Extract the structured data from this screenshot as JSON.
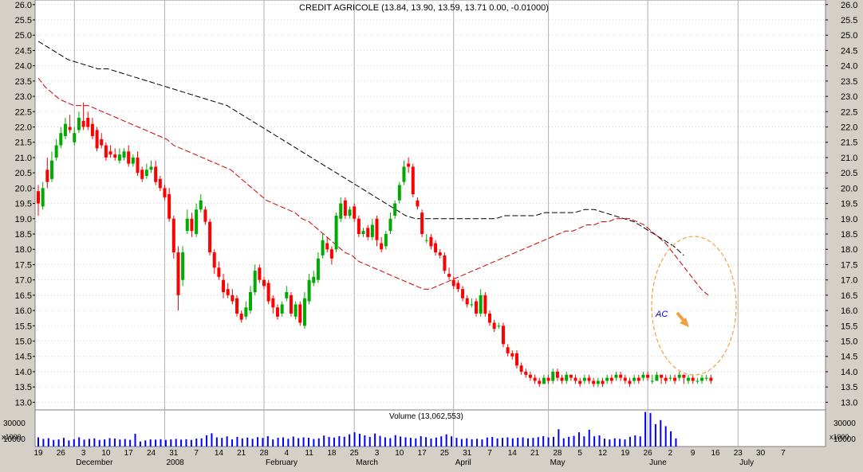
{
  "header": {
    "title_overlap": "CREDIT AGRICOLE",
    "title_text": "CREDIT AGRICOLE (13.84, 13.90, 13.59, 13.71 0.00, -0.01000)"
  },
  "volume_panel": {
    "label": "Volume (13,062,553)",
    "multiplier_label_left": "x1000",
    "multiplier_label_right": "x1000",
    "tick_label_left": "30000",
    "tick_label_right": "30000",
    "tick_label_left_low": "10000",
    "tick_label_right_low": "10000"
  },
  "annotation": {
    "label": "AC",
    "arrow_color": "#f0a040",
    "ellipse_color": "#f0a040"
  },
  "colors": {
    "up_candle": "#00aa00",
    "down_candle": "#ff0000",
    "ma_short": "#cc0000",
    "ma_long": "#000000",
    "volume_bar": "#0000ff",
    "panel_bg": "#ffffff",
    "frame_bg": "#d4d0c8",
    "grid": "#d0d0d0"
  },
  "chart_data": {
    "type": "candlestick",
    "title": "CREDIT AGRICOLE",
    "y_range": [
      12.75,
      26.15
    ],
    "y_ticks": [
      13.0,
      13.5,
      14.0,
      14.5,
      15.0,
      15.5,
      16.0,
      16.5,
      17.0,
      17.5,
      18.0,
      18.5,
      19.0,
      19.5,
      20.0,
      20.5,
      21.0,
      21.5,
      22.0,
      22.5,
      23.0,
      23.5,
      24.0,
      24.5,
      25.0,
      25.5,
      26.0
    ],
    "y_tick_labels": [
      "13.0",
      "13.5",
      "14.0",
      "14.5",
      "15.0",
      "15.5",
      "16.0",
      "16.5",
      "17.0",
      "17.5",
      "18.0",
      "18.5",
      "19.0",
      "19.5",
      "20.0",
      "20.5",
      "21.0",
      "21.5",
      "22.0",
      "22.5",
      "23.0",
      "23.5",
      "24.0",
      "24.5",
      "25.0",
      "25.5",
      "26.0"
    ],
    "x_day_labels": [
      {
        "day": 0,
        "label": "19"
      },
      {
        "day": 5,
        "label": "26"
      },
      {
        "day": 10,
        "label": "3"
      },
      {
        "day": 15,
        "label": "10"
      },
      {
        "day": 20,
        "label": "17"
      },
      {
        "day": 25,
        "label": "24"
      },
      {
        "day": 30,
        "label": "31"
      },
      {
        "day": 35,
        "label": "7"
      },
      {
        "day": 40,
        "label": "14"
      },
      {
        "day": 45,
        "label": "21"
      },
      {
        "day": 50,
        "label": "28"
      },
      {
        "day": 55,
        "label": "4"
      },
      {
        "day": 60,
        "label": "11"
      },
      {
        "day": 65,
        "label": "18"
      },
      {
        "day": 70,
        "label": "25"
      },
      {
        "day": 75,
        "label": "3"
      },
      {
        "day": 80,
        "label": "10"
      },
      {
        "day": 85,
        "label": "17"
      },
      {
        "day": 90,
        "label": "25"
      },
      {
        "day": 95,
        "label": "31"
      },
      {
        "day": 100,
        "label": "7"
      },
      {
        "day": 105,
        "label": "14"
      },
      {
        "day": 110,
        "label": "21"
      },
      {
        "day": 115,
        "label": "28"
      },
      {
        "day": 120,
        "label": "5"
      },
      {
        "day": 125,
        "label": "12"
      },
      {
        "day": 130,
        "label": "19"
      },
      {
        "day": 135,
        "label": "26"
      },
      {
        "day": 140,
        "label": "2"
      },
      {
        "day": 145,
        "label": "9"
      },
      {
        "day": 150,
        "label": "16"
      },
      {
        "day": 155,
        "label": "23"
      },
      {
        "day": 160,
        "label": "30"
      },
      {
        "day": 165,
        "label": "7"
      }
    ],
    "x_month_labels": [
      {
        "day": 8,
        "label": "December"
      },
      {
        "day": 28,
        "label": "2008"
      },
      {
        "day": 50,
        "label": "February"
      },
      {
        "day": 70,
        "label": "March"
      },
      {
        "day": 92,
        "label": "April"
      },
      {
        "day": 113,
        "label": "May"
      },
      {
        "day": 135,
        "label": "June"
      },
      {
        "day": 155,
        "label": "July"
      }
    ],
    "separators": [
      8,
      28,
      50,
      70,
      92,
      113,
      135,
      155
    ],
    "candles_day": [
      0,
      1,
      2,
      3,
      4,
      5,
      6,
      7,
      8,
      9,
      10,
      11,
      12,
      13,
      14,
      15,
      16,
      17,
      18,
      19,
      20,
      21,
      22,
      23,
      24,
      25,
      26,
      27,
      28,
      29,
      30,
      31,
      32,
      33,
      34,
      35,
      36,
      37,
      38,
      39,
      40,
      41,
      42,
      43,
      44,
      45,
      46,
      47,
      48,
      49,
      50,
      51,
      52,
      53,
      54,
      55,
      56,
      57,
      58,
      59,
      60,
      61,
      62,
      63,
      64,
      65,
      66,
      67,
      68,
      69,
      70,
      71,
      72,
      73,
      74,
      75,
      76,
      77,
      78,
      79,
      80,
      81,
      82,
      83,
      84,
      85,
      86,
      87,
      88,
      89,
      90,
      91,
      92,
      93,
      94,
      95,
      96,
      97,
      98,
      99,
      100,
      101,
      102,
      103,
      104,
      105,
      106,
      107,
      108,
      109,
      110,
      111,
      112,
      113,
      114,
      115,
      116,
      117,
      118,
      119,
      120,
      121,
      122,
      123,
      124,
      125,
      126,
      127,
      128,
      129,
      130,
      131,
      132,
      133,
      134,
      135,
      136,
      137,
      138,
      139,
      140,
      141,
      142,
      143,
      144,
      145,
      146,
      147,
      148,
      149
    ],
    "open": [
      19.9,
      19.4,
      20.6,
      20.3,
      21.0,
      21.4,
      21.7,
      22.0,
      21.5,
      21.9,
      22.2,
      22.3,
      22.1,
      21.9,
      21.6,
      21.4,
      21.2,
      21.1,
      20.9,
      21.0,
      21.2,
      20.8,
      21.0,
      20.6,
      20.4,
      20.6,
      20.7,
      20.3,
      20.0,
      19.8,
      19.0,
      17.9,
      17.0,
      18.6,
      19.0,
      18.5,
      19.3,
      19.3,
      18.9,
      17.9,
      17.4,
      17.0,
      16.7,
      16.5,
      16.4,
      15.9,
      15.8,
      16.0,
      16.6,
      17.4,
      17.0,
      16.9,
      16.4,
      16.1,
      15.9,
      16.4,
      16.5,
      15.8,
      16.2,
      15.5,
      16.3,
      16.9,
      17.0,
      17.8,
      18.2,
      18.0,
      18.0,
      19.0,
      19.6,
      19.1,
      19.4,
      19.0,
      18.5,
      18.7,
      18.4,
      19.0,
      18.2,
      18.1,
      18.6,
      19.1,
      19.6,
      20.2,
      20.8,
      20.7,
      19.6,
      19.2,
      18.3,
      18.4,
      18.2,
      17.9,
      17.8,
      17.2,
      17.0,
      16.9,
      16.7,
      16.4,
      16.2,
      16.3,
      15.9,
      16.5,
      15.9,
      15.6,
      15.5,
      15.5,
      14.8,
      14.6,
      14.6,
      14.2,
      14.0,
      13.9,
      13.8,
      13.7,
      13.6,
      13.8,
      13.7,
      14.0,
      13.8,
      13.7,
      13.9,
      13.8,
      13.7,
      13.7,
      13.8,
      13.7,
      13.6,
      13.7,
      13.7,
      13.8,
      13.8,
      13.9,
      13.8,
      13.7,
      13.7,
      13.8,
      13.8,
      13.9,
      13.7,
      13.7,
      13.9,
      13.8,
      13.8,
      13.8,
      13.8,
      13.9,
      13.7,
      13.8,
      13.7,
      13.7,
      13.8,
      13.8
    ],
    "close": [
      19.5,
      20.0,
      20.2,
      20.9,
      21.4,
      21.8,
      22.1,
      21.9,
      21.8,
      22.3,
      22.0,
      22.0,
      21.7,
      21.3,
      21.4,
      21.0,
      21.1,
      21.0,
      21.1,
      21.2,
      20.8,
      21.0,
      20.5,
      20.3,
      20.6,
      20.7,
      20.2,
      20.0,
      19.7,
      19.0,
      17.9,
      16.5,
      17.9,
      19.0,
      18.6,
      19.3,
      19.6,
      18.9,
      17.9,
      17.4,
      17.1,
      16.6,
      16.5,
      16.3,
      15.9,
      15.7,
      16.1,
      16.6,
      17.3,
      17.0,
      16.8,
      16.3,
      16.1,
      15.8,
      16.2,
      16.6,
      15.9,
      16.2,
      15.6,
      16.4,
      17.0,
      17.1,
      17.7,
      18.3,
      18.0,
      17.7,
      19.1,
      19.5,
      19.1,
      19.3,
      19.0,
      18.5,
      18.6,
      18.4,
      18.8,
      18.3,
      18.0,
      18.5,
      19.0,
      19.5,
      20.1,
      20.7,
      20.7,
      19.8,
      19.4,
      18.5,
      18.3,
      18.1,
      17.9,
      17.8,
      17.3,
      17.1,
      16.8,
      16.7,
      16.4,
      16.2,
      16.2,
      15.9,
      16.5,
      15.9,
      15.6,
      15.4,
      15.5,
      14.9,
      14.6,
      14.5,
      14.2,
      14.0,
      13.9,
      13.8,
      13.7,
      13.6,
      13.8,
      13.7,
      14.0,
      13.8,
      13.7,
      13.9,
      13.8,
      13.7,
      13.6,
      13.8,
      13.7,
      13.6,
      13.7,
      13.6,
      13.8,
      13.7,
      13.9,
      13.8,
      13.7,
      13.6,
      13.8,
      13.7,
      13.9,
      13.8,
      13.7,
      13.9,
      13.8,
      13.7,
      13.8,
      13.7,
      13.9,
      13.8,
      13.8,
      13.7,
      13.7,
      13.8,
      13.8,
      13.7
    ],
    "high": [
      20.1,
      20.2,
      21.0,
      21.2,
      21.6,
      22.0,
      22.3,
      22.4,
      22.0,
      22.5,
      22.8,
      22.5,
      22.3,
      22.0,
      21.8,
      21.5,
      21.4,
      21.3,
      21.3,
      21.3,
      21.4,
      21.1,
      21.2,
      20.7,
      20.8,
      20.9,
      20.9,
      20.4,
      20.1,
      20.0,
      19.1,
      18.1,
      18.1,
      19.3,
      19.2,
      19.5,
      19.8,
      19.4,
      19.0,
      18.0,
      17.6,
      17.2,
      16.9,
      16.7,
      16.5,
      16.0,
      16.3,
      16.8,
      17.5,
      17.5,
      17.1,
      17.0,
      16.5,
      16.2,
      16.3,
      16.8,
      16.6,
      16.3,
      16.3,
      16.6,
      17.2,
      17.3,
      17.9,
      18.5,
      18.4,
      18.1,
      19.2,
      19.7,
      19.7,
      19.4,
      19.5,
      19.1,
      18.7,
      18.8,
      19.0,
      19.1,
      18.4,
      18.6,
      19.2,
      19.6,
      20.2,
      20.9,
      21.0,
      20.8,
      19.7,
      19.3,
      18.5,
      18.5,
      18.3,
      18.0,
      17.9,
      17.4,
      17.1,
      17.0,
      16.8,
      16.5,
      16.4,
      16.4,
      16.7,
      16.6,
      16.0,
      15.7,
      15.6,
      15.6,
      14.9,
      14.7,
      14.7,
      14.3,
      14.1,
      14.0,
      13.9,
      13.8,
      13.9,
      13.9,
      14.1,
      14.1,
      13.9,
      14.0,
      13.9,
      13.9,
      13.8,
      13.9,
      13.9,
      13.8,
      13.8,
      13.8,
      13.9,
      13.9,
      14.0,
      14.0,
      13.9,
      13.8,
      13.9,
      13.9,
      14.0,
      14.0,
      13.9,
      14.0,
      13.9,
      13.9,
      13.9,
      13.9,
      14.0,
      13.9,
      13.9,
      13.9,
      13.8,
      13.9,
      13.9,
      13.9
    ],
    "low": [
      19.1,
      19.3,
      20.0,
      20.2,
      20.9,
      21.3,
      21.6,
      21.8,
      21.4,
      21.8,
      21.9,
      21.9,
      21.6,
      21.2,
      21.3,
      20.9,
      21.0,
      20.9,
      20.8,
      20.9,
      20.7,
      20.7,
      20.4,
      20.2,
      20.3,
      20.5,
      20.1,
      19.9,
      19.6,
      18.9,
      17.7,
      16.0,
      16.8,
      18.5,
      18.4,
      18.4,
      19.2,
      18.8,
      17.8,
      17.2,
      17.0,
      16.4,
      16.4,
      16.2,
      15.8,
      15.6,
      15.7,
      15.9,
      16.5,
      16.9,
      16.7,
      16.2,
      15.9,
      15.7,
      15.8,
      16.3,
      15.8,
      15.7,
      15.5,
      15.4,
      16.2,
      16.8,
      16.9,
      17.7,
      17.9,
      17.5,
      17.9,
      18.9,
      19.0,
      19.0,
      18.9,
      18.4,
      18.4,
      18.3,
      18.3,
      18.1,
      17.9,
      18.0,
      18.5,
      19.0,
      19.5,
      20.1,
      20.5,
      19.7,
      19.3,
      18.4,
      18.2,
      18.0,
      17.8,
      17.7,
      17.2,
      17.0,
      16.7,
      16.6,
      16.3,
      16.1,
      16.1,
      15.8,
      15.8,
      15.8,
      15.5,
      15.3,
      15.4,
      14.8,
      14.5,
      14.4,
      14.1,
      13.9,
      13.8,
      13.7,
      13.6,
      13.5,
      13.6,
      13.6,
      13.6,
      13.7,
      13.6,
      13.6,
      13.7,
      13.6,
      13.5,
      13.6,
      13.6,
      13.5,
      13.5,
      13.5,
      13.6,
      13.6,
      13.7,
      13.7,
      13.6,
      13.5,
      13.6,
      13.6,
      13.7,
      13.7,
      13.6,
      13.7,
      13.6,
      13.6,
      13.7,
      13.6,
      13.7,
      13.6,
      13.6,
      13.6,
      13.6,
      13.6,
      13.7,
      13.6
    ],
    "ma_short": [
      23.6,
      23.3,
      23.1,
      22.9,
      22.8,
      22.7,
      22.7,
      22.7,
      22.6,
      22.5,
      22.4,
      22.3,
      22.2,
      22.1,
      22.0,
      21.9,
      21.8,
      21.7,
      21.6,
      21.4,
      21.3,
      21.2,
      21.1,
      21.0,
      20.9,
      20.8,
      20.7,
      20.6,
      20.4,
      20.2,
      20.0,
      19.8,
      19.6,
      19.5,
      19.4,
      19.3,
      19.2,
      19.0,
      18.9,
      18.7,
      18.5,
      18.3,
      18.1,
      17.9,
      17.8,
      17.6,
      17.5,
      17.4,
      17.3,
      17.2,
      17.1,
      17.0,
      16.9,
      16.8,
      16.7,
      16.7,
      16.8,
      16.9,
      17.0,
      17.1,
      17.2,
      17.3,
      17.4,
      17.5,
      17.6,
      17.7,
      17.8,
      17.9,
      18.0,
      18.1,
      18.2,
      18.3,
      18.4,
      18.5,
      18.6,
      18.6,
      18.7,
      18.8,
      18.8,
      18.9,
      18.9,
      19.0,
      19.0,
      19.0,
      18.9,
      18.8,
      18.6,
      18.4,
      18.2,
      17.9,
      17.6,
      17.3,
      17.0,
      16.7,
      16.5
    ],
    "ma_short_start_day": 0,
    "ma_short_step": 1.5789,
    "ma_long": [
      24.8,
      24.6,
      24.4,
      24.2,
      24.1,
      24.0,
      23.9,
      23.9,
      23.8,
      23.7,
      23.6,
      23.5,
      23.4,
      23.3,
      23.2,
      23.1,
      23.0,
      22.9,
      22.8,
      22.7,
      22.5,
      22.3,
      22.1,
      21.9,
      21.7,
      21.5,
      21.3,
      21.1,
      20.9,
      20.7,
      20.5,
      20.3,
      20.1,
      19.9,
      19.7,
      19.5,
      19.3,
      19.1,
      19.0,
      19.0,
      19.0,
      19.0,
      19.0,
      19.0,
      19.0,
      19.0,
      19.0,
      19.1,
      19.1,
      19.1,
      19.1,
      19.2,
      19.2,
      19.2,
      19.2,
      19.3,
      19.3,
      19.2,
      19.1,
      19.0,
      18.9,
      18.7,
      18.5,
      18.3,
      18.1,
      17.8
    ],
    "ma_long_start_day": 0,
    "ma_long_step": 2.2,
    "volume_thousands": [
      9000,
      7500,
      8200,
      6500,
      7000,
      8500,
      6000,
      7200,
      9000,
      6800,
      7500,
      8000,
      6500,
      7000,
      8200,
      7800,
      6900,
      7400,
      6600,
      12500,
      5000,
      6000,
      7000,
      6800,
      7200,
      6500,
      7000,
      7500,
      6800,
      7200,
      6500,
      7800,
      8000,
      11000,
      13000,
      9000,
      8500,
      10000,
      7000,
      9500,
      8000,
      8800,
      7600,
      9200,
      8400,
      10200,
      7000,
      8600,
      9000,
      7600,
      9800,
      8200,
      9000,
      8600,
      7400,
      8000,
      10800,
      9400,
      8800,
      10200,
      9600,
      12000,
      14000,
      12500,
      11000,
      9500,
      12800,
      10500,
      9000,
      8200,
      11200,
      9800,
      9000,
      8500,
      8000,
      10200,
      9200,
      7800,
      8800,
      10000,
      12000,
      10000,
      8500,
      7400,
      8000,
      7200,
      7600,
      7000,
      8800,
      9400,
      8000,
      8500,
      9000,
      8000,
      8600,
      9000,
      8000,
      8500,
      9200,
      10200,
      9000,
      9500,
      17000,
      8000,
      9500,
      10500,
      14000,
      10000,
      16500,
      10000,
      11000,
      7800,
      7000,
      8000,
      7500,
      7000,
      9500,
      11000,
      10000,
      34000,
      33000,
      22000,
      26000,
      20000,
      15000,
      8000
    ],
    "volume_start_day": 0,
    "volume_step": 1.13,
    "volume_y_range": [
      0,
      36000
    ]
  }
}
